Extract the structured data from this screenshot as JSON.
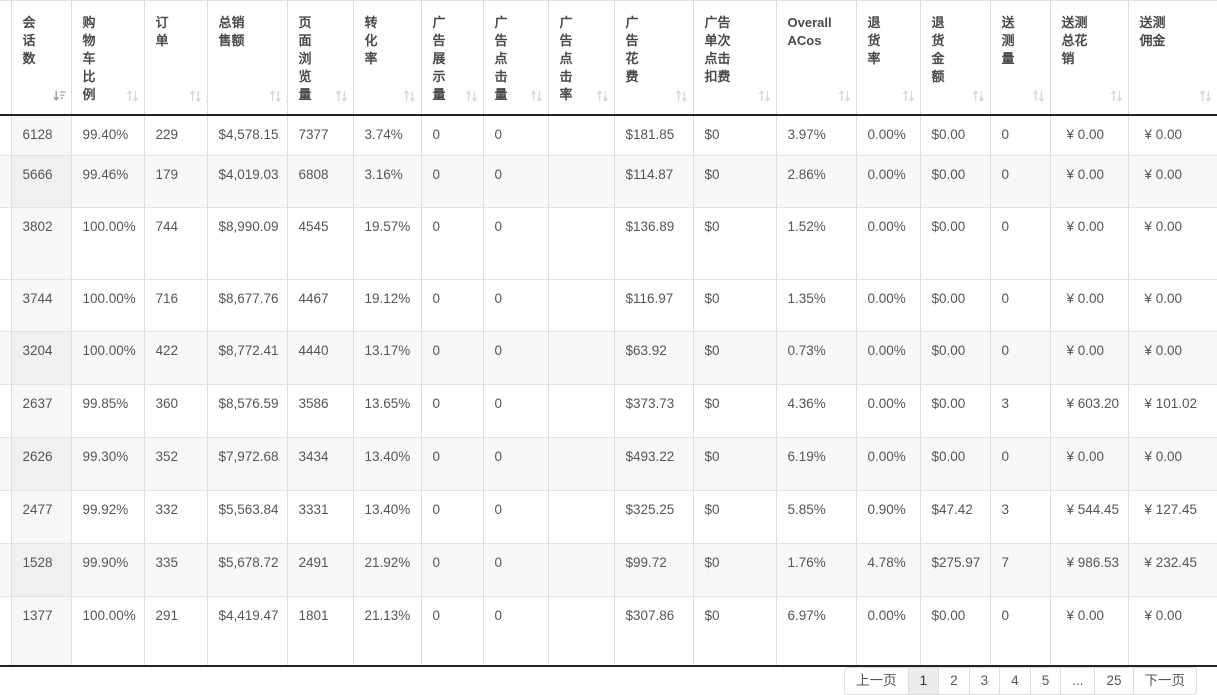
{
  "table": {
    "columns": [
      {
        "label": "",
        "sortable": false
      },
      {
        "label": "会\n话\n数",
        "sortable": true,
        "sorted": "desc"
      },
      {
        "label": "购\n物\n车\n比\n例",
        "sortable": true
      },
      {
        "label": "订\n单",
        "sortable": true
      },
      {
        "label": "总销\n售额",
        "sortable": true
      },
      {
        "label": "页\n面\n浏\n览\n量",
        "sortable": true
      },
      {
        "label": "转\n化\n率",
        "sortable": true
      },
      {
        "label": "广\n告\n展\n示\n量",
        "sortable": true
      },
      {
        "label": "广\n告\n点\n击\n量",
        "sortable": true
      },
      {
        "label": "广\n告\n点\n击\n率",
        "sortable": true
      },
      {
        "label": "广\n告\n花\n费",
        "sortable": true
      },
      {
        "label": "广告\n单次\n点击\n扣费",
        "sortable": true
      },
      {
        "label": "Overall\nACos",
        "sortable": true
      },
      {
        "label": "退\n货\n率",
        "sortable": true
      },
      {
        "label": "退\n货\n金\n额",
        "sortable": true
      },
      {
        "label": "送\n测\n量",
        "sortable": true
      },
      {
        "label": "送测\n总花\n销",
        "sortable": true
      },
      {
        "label": "送测\n佣金",
        "sortable": true
      }
    ],
    "rows": [
      [
        "",
        "6128",
        "99.40%",
        "229",
        "$4,578.15",
        "7377",
        "3.74%",
        "0",
        "0",
        "",
        "$181.85",
        "$0",
        "3.97%",
        "0.00%",
        "$0.00",
        "0",
        "¥ 0.00",
        "¥ 0.00"
      ],
      [
        "",
        "5666",
        "99.46%",
        "179",
        "$4,019.03",
        "6808",
        "3.16%",
        "0",
        "0",
        "",
        "$114.87",
        "$0",
        "2.86%",
        "0.00%",
        "$0.00",
        "0",
        "¥ 0.00",
        "¥ 0.00"
      ],
      [
        "",
        "3802",
        "100.00%",
        "744",
        "$8,990.09",
        "4545",
        "19.57%",
        "0",
        "0",
        "",
        "$136.89",
        "$0",
        "1.52%",
        "0.00%",
        "$0.00",
        "0",
        "¥ 0.00",
        "¥ 0.00"
      ],
      [
        "",
        "3744",
        "100.00%",
        "716",
        "$8,677.76",
        "4467",
        "19.12%",
        "0",
        "0",
        "",
        "$116.97",
        "$0",
        "1.35%",
        "0.00%",
        "$0.00",
        "0",
        "¥ 0.00",
        "¥ 0.00"
      ],
      [
        "",
        "3204",
        "100.00%",
        "422",
        "$8,772.41",
        "4440",
        "13.17%",
        "0",
        "0",
        "",
        "$63.92",
        "$0",
        "0.73%",
        "0.00%",
        "$0.00",
        "0",
        "¥ 0.00",
        "¥ 0.00"
      ],
      [
        "",
        "2637",
        "99.85%",
        "360",
        "$8,576.59",
        "3586",
        "13.65%",
        "0",
        "0",
        "",
        "$373.73",
        "$0",
        "4.36%",
        "0.00%",
        "$0.00",
        "3",
        "¥ 603.20",
        "¥ 101.02"
      ],
      [
        "",
        "2626",
        "99.30%",
        "352",
        "$7,972.68",
        "3434",
        "13.40%",
        "0",
        "0",
        "",
        "$493.22",
        "$0",
        "6.19%",
        "0.00%",
        "$0.00",
        "0",
        "¥ 0.00",
        "¥ 0.00"
      ],
      [
        "",
        "2477",
        "99.92%",
        "332",
        "$5,563.84",
        "3331",
        "13.40%",
        "0",
        "0",
        "",
        "$325.25",
        "$0",
        "5.85%",
        "0.90%",
        "$47.42",
        "3",
        "¥ 544.45",
        "¥ 127.45"
      ],
      [
        "",
        "1528",
        "99.90%",
        "335",
        "$5,678.72",
        "2491",
        "21.92%",
        "0",
        "0",
        "",
        "$99.72",
        "$0",
        "1.76%",
        "4.78%",
        "$275.97",
        "7",
        "¥ 986.53",
        "¥ 232.45"
      ],
      [
        "",
        "1377",
        "100.00%",
        "291",
        "$4,419.47",
        "1801",
        "21.13%",
        "0",
        "0",
        "",
        "$307.86",
        "$0",
        "6.97%",
        "0.00%",
        "$0.00",
        "0",
        "¥ 0.00",
        "¥ 0.00"
      ]
    ]
  },
  "pagination": {
    "prev_label": "上一页",
    "pages": [
      "1",
      "2",
      "3",
      "4",
      "5",
      "...",
      "25"
    ],
    "active_page": "1",
    "next_label": "下一页"
  }
}
